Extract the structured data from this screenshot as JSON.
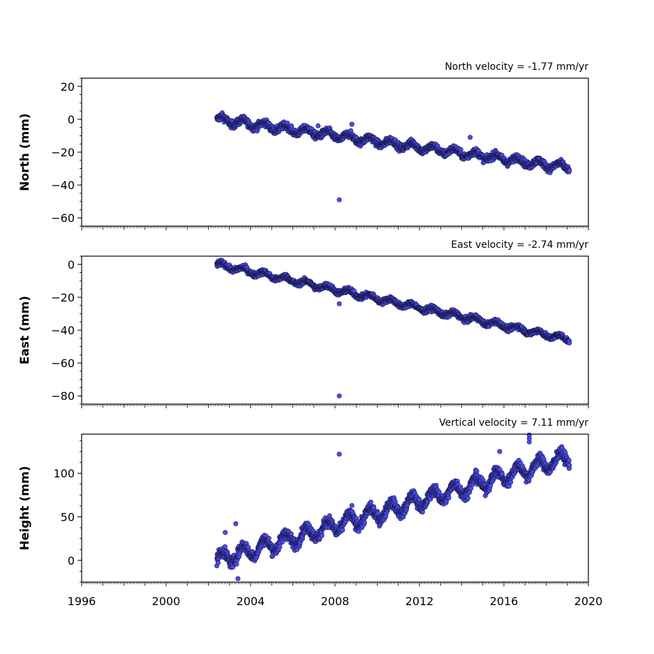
{
  "chart_data": [
    {
      "type": "scatter",
      "title": "North velocity = -1.77 mm/yr",
      "ylabel": "North (mm)",
      "ylim": [
        -65,
        25
      ],
      "yticks": [
        20,
        0,
        -20,
        -40,
        -60
      ],
      "ytick_labels": [
        "20",
        "0",
        "−20",
        "−40",
        "−60"
      ],
      "xlim": [
        1996,
        2020
      ],
      "data_start": 2002.4,
      "data_end": 2019.1,
      "intercept": 0,
      "velocity": -1.77,
      "seasonal_amplitude": 2,
      "noise": 2,
      "outliers": [
        {
          "x": 2008.2,
          "y": -49
        },
        {
          "x": 2014.4,
          "y": -11
        },
        {
          "x": 2007.2,
          "y": -4
        },
        {
          "x": 2008.8,
          "y": -3
        }
      ],
      "color": "#4b4bf0",
      "grid": false
    },
    {
      "type": "scatter",
      "title": "East velocity = -2.74 mm/yr",
      "ylabel": "East (mm)",
      "ylim": [
        -85,
        5
      ],
      "yticks": [
        0,
        -20,
        -40,
        -60,
        -80
      ],
      "ytick_labels": [
        "0",
        "−20",
        "−40",
        "−60",
        "−80"
      ],
      "xlim": [
        1996,
        2020
      ],
      "data_start": 2002.4,
      "data_end": 2019.1,
      "intercept": 0,
      "velocity": -2.74,
      "seasonal_amplitude": 1.5,
      "noise": 1.5,
      "outliers": [
        {
          "x": 2008.2,
          "y": -80
        },
        {
          "x": 2008.2,
          "y": -24
        },
        {
          "x": 2008.9,
          "y": -16
        }
      ],
      "color": "#4b4bf0",
      "grid": false
    },
    {
      "type": "scatter",
      "title": "Vertical velocity = 7.11 mm/yr",
      "ylabel": "Height (mm)",
      "ylim": [
        -25,
        145
      ],
      "yticks": [
        100,
        50,
        0
      ],
      "ytick_labels": [
        "100",
        "50",
        "0"
      ],
      "xlim": [
        1996,
        2020
      ],
      "xticks": [
        1996,
        2000,
        2004,
        2008,
        2012,
        2016,
        2020
      ],
      "xtick_labels": [
        "1996",
        "2000",
        "2004",
        "2008",
        "2012",
        "2016",
        "2020"
      ],
      "data_start": 2002.4,
      "data_end": 2019.1,
      "intercept": 0,
      "velocity": 7.11,
      "seasonal_amplitude": 8,
      "noise": 6,
      "outliers": [
        {
          "x": 2008.2,
          "y": 122
        },
        {
          "x": 2003.3,
          "y": 42
        },
        {
          "x": 2003.4,
          "y": -21
        },
        {
          "x": 2015.8,
          "y": 125
        },
        {
          "x": 2017.2,
          "y": 136
        },
        {
          "x": 2017.2,
          "y": 140
        },
        {
          "x": 2017.2,
          "y": 144
        },
        {
          "x": 2008.8,
          "y": 63
        },
        {
          "x": 2002.8,
          "y": 32
        }
      ],
      "color": "#4b4bf0",
      "grid": false
    }
  ]
}
